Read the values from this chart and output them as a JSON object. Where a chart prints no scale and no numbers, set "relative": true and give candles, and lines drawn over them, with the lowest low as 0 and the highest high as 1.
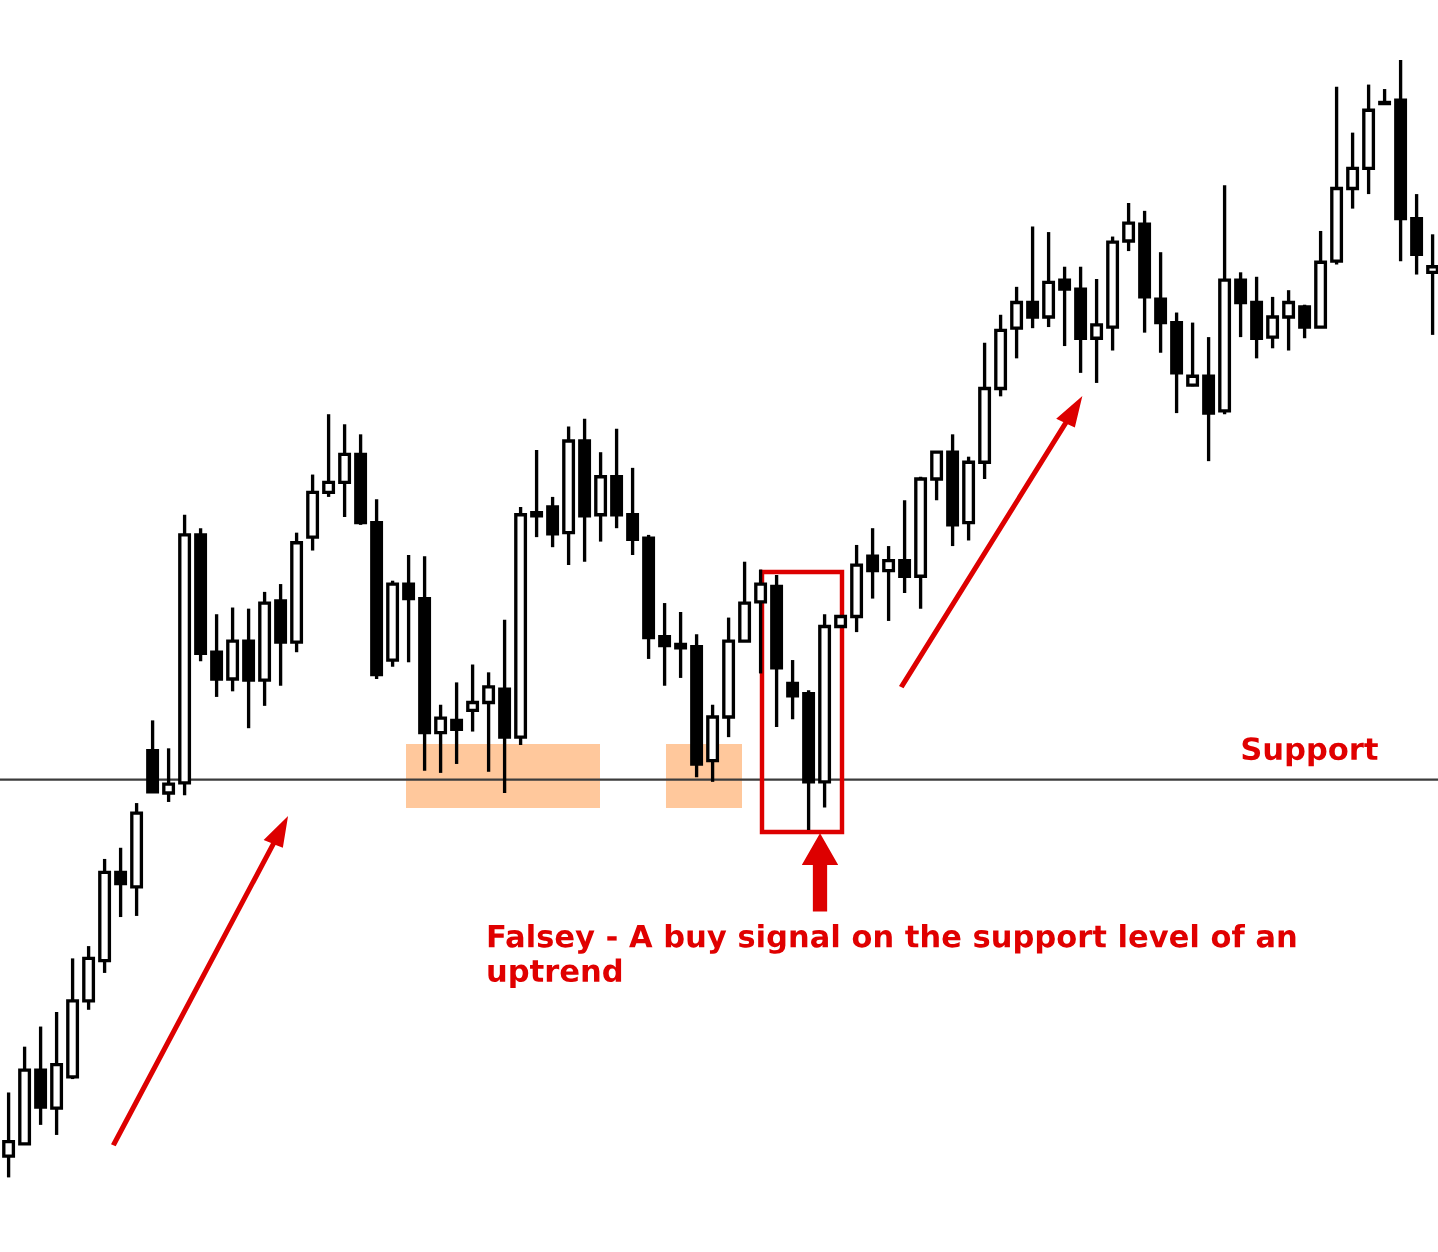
{
  "chart_data": {
    "type": "candlestick",
    "relative": true,
    "categories": [
      null,
      null,
      null,
      null,
      null,
      null,
      null,
      null,
      null,
      null,
      null,
      null,
      null,
      null,
      null,
      null,
      null,
      null,
      null,
      null,
      null,
      null,
      null,
      null,
      null,
      null,
      null,
      null,
      null,
      null,
      null,
      null,
      null,
      null,
      null,
      null,
      null,
      null,
      null,
      null,
      null,
      null,
      null,
      null,
      null,
      null,
      null,
      null,
      null,
      null,
      null,
      null,
      null,
      null,
      null,
      null,
      null,
      null,
      null,
      null,
      null,
      null,
      null,
      null,
      null,
      null,
      null,
      null,
      null,
      null,
      null,
      null,
      null,
      null,
      null,
      null,
      null,
      null,
      null,
      null,
      null,
      null,
      null,
      null,
      null,
      null,
      null,
      null,
      null,
      null
    ],
    "ohlc": [
      [
        0.019,
        0.076,
        0,
        0.032
      ],
      [
        0.03,
        0.117,
        0.03,
        0.096
      ],
      [
        0.096,
        0.135,
        0.047,
        0.063
      ],
      [
        0.062,
        0.148,
        0.038,
        0.101
      ],
      [
        0.09,
        0.196,
        0.088,
        0.158
      ],
      [
        0.158,
        0.207,
        0.15,
        0.196
      ],
      [
        0.194,
        0.285,
        0.183,
        0.273
      ],
      [
        0.273,
        0.295,
        0.233,
        0.263
      ],
      [
        0.26,
        0.335,
        0.234,
        0.326
      ],
      [
        0.382,
        0.409,
        0.344,
        0.345
      ],
      [
        0.344,
        0.384,
        0.336,
        0.352
      ],
      [
        0.353,
        0.593,
        0.342,
        0.575
      ],
      [
        0.575,
        0.581,
        0.462,
        0.469
      ],
      [
        0.47,
        0.504,
        0.43,
        0.446
      ],
      [
        0.446,
        0.51,
        0.435,
        0.48
      ],
      [
        0.48,
        0.509,
        0.402,
        0.445
      ],
      [
        0.445,
        0.524,
        0.422,
        0.514
      ],
      [
        0.516,
        0.531,
        0.44,
        0.479
      ],
      [
        0.479,
        0.577,
        0.47,
        0.568
      ],
      [
        0.573,
        0.629,
        0.561,
        0.613
      ],
      [
        0.613,
        0.683,
        0.609,
        0.622
      ],
      [
        0.622,
        0.674,
        0.591,
        0.647
      ],
      [
        0.647,
        0.665,
        0.584,
        0.586
      ],
      [
        0.586,
        0.607,
        0.446,
        0.45
      ],
      [
        0.463,
        0.534,
        0.457,
        0.531
      ],
      [
        0.531,
        0.557,
        0.461,
        0.518
      ],
      [
        0.518,
        0.556,
        0.364,
        0.398
      ],
      [
        0.398,
        0.423,
        0.362,
        0.411
      ],
      [
        0.409,
        0.443,
        0.37,
        0.401
      ],
      [
        0.418,
        0.459,
        0.399,
        0.425
      ],
      [
        0.425,
        0.452,
        0.363,
        0.439
      ],
      [
        0.437,
        0.499,
        0.344,
        0.394
      ],
      [
        0.394,
        0.6,
        0.387,
        0.593
      ],
      [
        0.595,
        0.651,
        0.573,
        0.592
      ],
      [
        0.6,
        0.609,
        0.564,
        0.576
      ],
      [
        0.577,
        0.672,
        0.548,
        0.659
      ],
      [
        0.659,
        0.679,
        0.551,
        0.592
      ],
      [
        0.593,
        0.649,
        0.569,
        0.627
      ],
      [
        0.627,
        0.67,
        0.581,
        0.593
      ],
      [
        0.593,
        0.635,
        0.557,
        0.571
      ],
      [
        0.572,
        0.575,
        0.464,
        0.483
      ],
      [
        0.484,
        0.514,
        0.44,
        0.476
      ],
      [
        0.477,
        0.506,
        0.447,
        0.474
      ],
      [
        0.475,
        0.486,
        0.358,
        0.37
      ],
      [
        0.373,
        0.423,
        0.354,
        0.412
      ],
      [
        0.412,
        0.501,
        0.394,
        0.48
      ],
      [
        0.48,
        0.551,
        0.48,
        0.514
      ],
      [
        0.515,
        0.544,
        0.451,
        0.531
      ],
      [
        0.529,
        0.539,
        0.403,
        0.456
      ],
      [
        0.442,
        0.463,
        0.41,
        0.431
      ],
      [
        0.433,
        0.436,
        0.311,
        0.354
      ],
      [
        0.354,
        0.504,
        0.331,
        0.493
      ],
      [
        0.493,
        0.502,
        0.493,
        0.502
      ],
      [
        0.502,
        0.566,
        0.488,
        0.548
      ],
      [
        0.556,
        0.581,
        0.518,
        0.543
      ],
      [
        0.543,
        0.565,
        0.498,
        0.552
      ],
      [
        0.552,
        0.606,
        0.523,
        0.538
      ],
      [
        0.538,
        0.627,
        0.509,
        0.625
      ],
      [
        0.625,
        0.65,
        0.606,
        0.649
      ],
      [
        0.649,
        0.665,
        0.565,
        0.584
      ],
      [
        0.586,
        0.645,
        0.57,
        0.64
      ],
      [
        0.64,
        0.747,
        0.625,
        0.706
      ],
      [
        0.706,
        0.772,
        0.699,
        0.758
      ],
      [
        0.76,
        0.797,
        0.733,
        0.783
      ],
      [
        0.783,
        0.851,
        0.76,
        0.77
      ],
      [
        0.77,
        0.846,
        0.761,
        0.801
      ],
      [
        0.803,
        0.815,
        0.744,
        0.795
      ],
      [
        0.795,
        0.815,
        0.72,
        0.751
      ],
      [
        0.751,
        0.804,
        0.711,
        0.763
      ],
      [
        0.761,
        0.842,
        0.74,
        0.837
      ],
      [
        0.838,
        0.872,
        0.829,
        0.854
      ],
      [
        0.853,
        0.865,
        0.756,
        0.788
      ],
      [
        0.786,
        0.828,
        0.738,
        0.765
      ],
      [
        0.765,
        0.774,
        0.684,
        0.72
      ],
      [
        0.709,
        0.765,
        0.708,
        0.717
      ],
      [
        0.717,
        0.752,
        0.641,
        0.684
      ],
      [
        0.686,
        0.888,
        0.683,
        0.803
      ],
      [
        0.803,
        0.81,
        0.752,
        0.783
      ],
      [
        0.783,
        0.806,
        0.733,
        0.751
      ],
      [
        0.752,
        0.788,
        0.742,
        0.77
      ],
      [
        0.77,
        0.794,
        0.74,
        0.783
      ],
      [
        0.779,
        0.781,
        0.751,
        0.761
      ],
      [
        0.761,
        0.847,
        0.761,
        0.819
      ],
      [
        0.82,
        0.976,
        0.817,
        0.885
      ],
      [
        0.885,
        0.935,
        0.867,
        0.903
      ],
      [
        0.903,
        0.978,
        0.88,
        0.955
      ],
      [
        0.962,
        0.974,
        0.961,
        0.961
      ],
      [
        0.964,
        1,
        0.82,
        0.858
      ],
      [
        0.858,
        0.88,
        0.808,
        0.826
      ],
      [
        0.81,
        0.844,
        0.754,
        0.815
      ]
    ],
    "ref_lines": [
      {
        "axis": "y",
        "value": 0.356,
        "label": "Support",
        "color": "#3c3c3c"
      }
    ],
    "annotations": [
      "Falsey - A buy signal on the support level of an uptrend"
    ]
  }
}
